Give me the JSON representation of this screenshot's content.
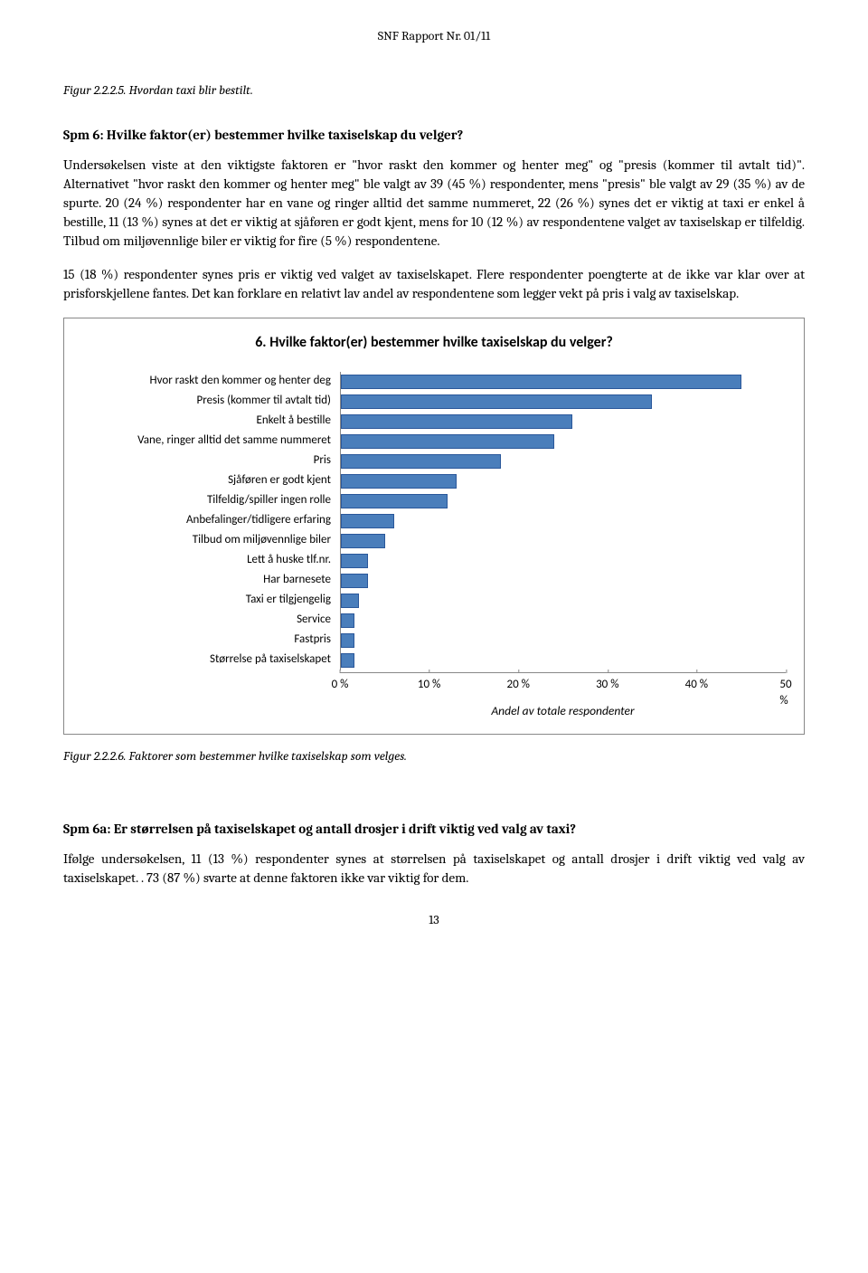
{
  "header": "SNF Rapport Nr. 01/11",
  "figcaption1": "Figur 2.2.2.5. Hvordan taxi blir bestilt.",
  "heading1": "Spm 6: Hvilke faktor(er) bestemmer hvilke taxiselskap du velger?",
  "para1": "Undersøkelsen viste at den viktigste faktoren er \"hvor raskt den kommer og henter meg\" og \"presis (kommer til avtalt tid)\". Alternativet \"hvor raskt den kommer og henter meg\" ble valgt av 39 (45 %) respondenter, mens \"presis\" ble valgt av 29 (35 %) av de spurte. 20 (24 %) respondenter har en vane og ringer alltid det samme nummeret, 22 (26 %) synes det er viktig at taxi er enkel å bestille, 11 (13 %) synes at det er viktig at sjåføren er godt kjent, mens for 10 (12 %) av respondentene valget av taxiselskap er tilfeldig. Tilbud om miljøvennlige biler er viktig for fire (5 %) respondentene.",
  "para2": "15 (18 %) respondenter synes pris er viktig ved valget av taxiselskapet. Flere respondenter poengterte at de ikke var klar over at prisforskjellene fantes. Det kan forklare en relativt lav andel av respondentene som legger vekt på pris i valg av taxiselskap.",
  "chart": {
    "type": "bar-horizontal",
    "title": "6. Hvilke faktor(er) bestemmer hvilke taxiselskap du velger?",
    "xlabel": "Andel av totale respondenter",
    "xlim_max": 50,
    "xtick_step": 10,
    "xticks": [
      "0 %",
      "10 %",
      "20 %",
      "30 %",
      "40 %",
      "50 %"
    ],
    "bar_fill": "#4a7ebb",
    "bar_border": "#2a579a",
    "categories": [
      {
        "label": "Hvor raskt den kommer og henter deg",
        "value": 45
      },
      {
        "label": "Presis (kommer til avtalt tid)",
        "value": 35
      },
      {
        "label": "Enkelt å bestille",
        "value": 26
      },
      {
        "label": "Vane, ringer alltid det samme nummeret",
        "value": 24
      },
      {
        "label": "Pris",
        "value": 18
      },
      {
        "label": "Sjåføren er godt kjent",
        "value": 13
      },
      {
        "label": "Tilfeldig/spiller ingen rolle",
        "value": 12
      },
      {
        "label": "Anbefalinger/tidligere erfaring",
        "value": 6
      },
      {
        "label": "Tilbud om miljøvennlige biler",
        "value": 5
      },
      {
        "label": "Lett å huske tlf.nr.",
        "value": 3
      },
      {
        "label": "Har barnesete",
        "value": 3
      },
      {
        "label": "Taxi er tilgjengelig",
        "value": 2
      },
      {
        "label": "Service",
        "value": 1.5
      },
      {
        "label": "Fastpris",
        "value": 1.5
      },
      {
        "label": "Størrelse på taxiselskapet",
        "value": 1.5
      }
    ]
  },
  "figcaption2": "Figur 2.2.2.6. Faktorer som bestemmer hvilke taxiselskap som velges.",
  "heading2": "Spm 6a: Er størrelsen på taxiselskapet og antall drosjer i drift viktig ved valg av taxi?",
  "para3": "Ifølge undersøkelsen, 11 (13 %) respondenter synes at størrelsen på taxiselskapet og antall drosjer i drift viktig ved valg av taxiselskapet. . 73 (87 %) svarte at denne faktoren ikke var viktig for dem.",
  "page_number": "13"
}
